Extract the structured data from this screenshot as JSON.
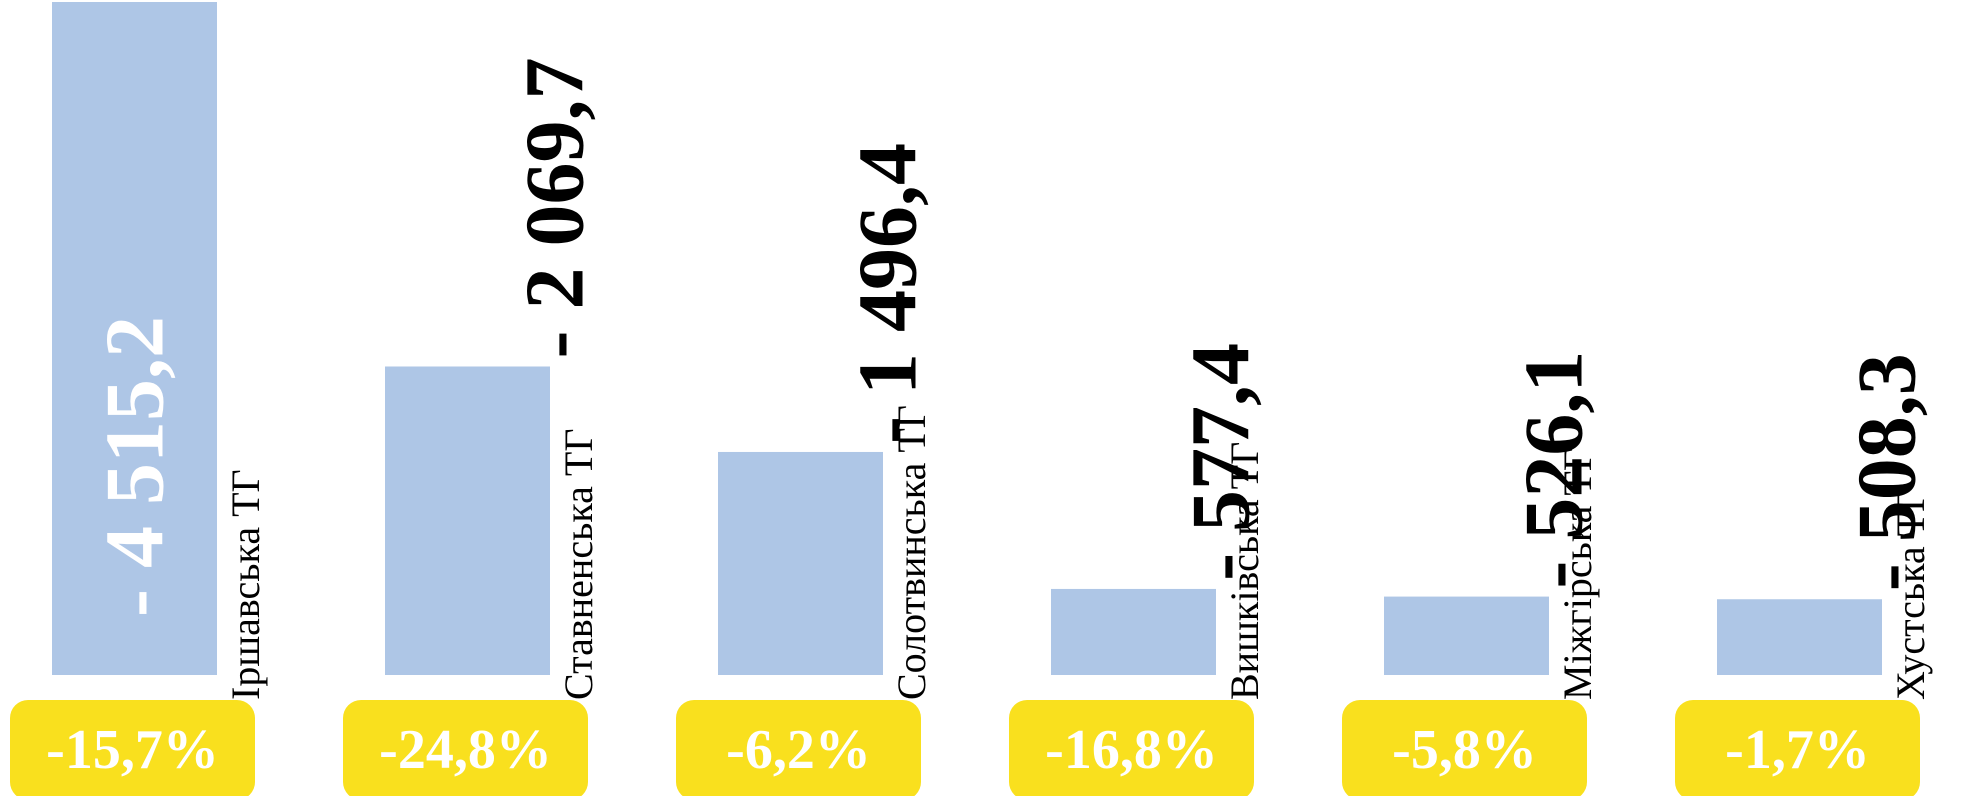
{
  "chart_data": {
    "type": "bar",
    "categories": [
      "Іршавська ТГ",
      "Ставненська ТГ",
      "Солотвинська ТГ",
      "Вишківська ТГ",
      "Міжгірська ТГ",
      "Хустська ТГ"
    ],
    "values": [
      -4515.2,
      -2069.7,
      -1496.4,
      -577.4,
      -526.1,
      -508.3
    ],
    "value_labels": [
      "- 4 515,2",
      "- 2 069,7",
      "- 1 496,4",
      "- 577,4",
      "- 526,1",
      "- 508,3"
    ],
    "percent_labels": [
      "-15,7%",
      "-24,8%",
      "-6,2%",
      "-16,8%",
      "-5,8%",
      "-1,7%"
    ],
    "colors": {
      "bar": "#aec6e6",
      "badge": "#f9e01e",
      "value_inside": "#ffffff",
      "value_above": "#000000"
    }
  }
}
